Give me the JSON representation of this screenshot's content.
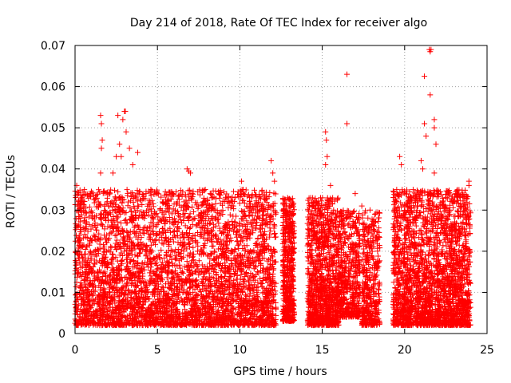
{
  "chart_data": {
    "type": "scatter",
    "title": "Day 214 of 2018, Rate Of TEC Index for receiver algo",
    "xlabel": "GPS time / hours",
    "ylabel": "ROTI / TECUs",
    "xlim": [
      0,
      25
    ],
    "ylim": [
      0,
      0.07
    ],
    "x_ticks": [
      0,
      5,
      10,
      15,
      20,
      25
    ],
    "x_tick_labels": [
      "0",
      "5",
      "10",
      "15",
      "20",
      "25"
    ],
    "y_ticks": [
      0,
      0.01,
      0.02,
      0.03,
      0.04,
      0.05,
      0.06,
      0.07
    ],
    "y_tick_labels": [
      "0",
      "0.01",
      "0.02",
      "0.03",
      "0.04",
      "0.05",
      "0.06",
      "0.07"
    ],
    "grid": true,
    "marker": "+",
    "series": [
      {
        "name": "ROTI",
        "color": "#ff0000",
        "points": [
          [
            0.1,
            0.036
          ],
          [
            0.2,
            0.031
          ],
          [
            0.3,
            0.028
          ],
          [
            1.55,
            0.053
          ],
          [
            1.6,
            0.051
          ],
          [
            1.65,
            0.047
          ],
          [
            1.6,
            0.045
          ],
          [
            1.55,
            0.039
          ],
          [
            2.5,
            0.043
          ],
          [
            2.7,
            0.046
          ],
          [
            2.9,
            0.052
          ],
          [
            3.0,
            0.054
          ],
          [
            3.05,
            0.054
          ],
          [
            3.1,
            0.049
          ],
          [
            2.6,
            0.053
          ],
          [
            3.3,
            0.045
          ],
          [
            3.5,
            0.041
          ],
          [
            3.8,
            0.044
          ],
          [
            2.3,
            0.039
          ],
          [
            2.8,
            0.043
          ],
          [
            4.6,
            0.035
          ],
          [
            5.0,
            0.034
          ],
          [
            5.3,
            0.032
          ],
          [
            5.6,
            0.031
          ],
          [
            6.8,
            0.04
          ],
          [
            6.9,
            0.0395
          ],
          [
            7.0,
            0.039
          ],
          [
            7.9,
            0.035
          ],
          [
            8.2,
            0.034
          ],
          [
            8.5,
            0.03
          ],
          [
            9.3,
            0.033
          ],
          [
            9.6,
            0.031
          ],
          [
            10.1,
            0.037
          ],
          [
            10.2,
            0.035
          ],
          [
            10.7,
            0.03
          ],
          [
            11.2,
            0.028
          ],
          [
            11.9,
            0.042
          ],
          [
            12.0,
            0.039
          ],
          [
            12.1,
            0.037
          ],
          [
            12.9,
            0.033
          ],
          [
            13.1,
            0.031
          ],
          [
            14.3,
            0.033
          ],
          [
            14.9,
            0.033
          ],
          [
            15.2,
            0.049
          ],
          [
            15.25,
            0.047
          ],
          [
            15.3,
            0.043
          ],
          [
            15.2,
            0.041
          ],
          [
            15.5,
            0.036
          ],
          [
            16.5,
            0.063
          ],
          [
            16.5,
            0.051
          ],
          [
            17.0,
            0.034
          ],
          [
            17.4,
            0.031
          ],
          [
            17.9,
            0.03
          ],
          [
            18.2,
            0.027
          ],
          [
            19.4,
            0.03
          ],
          [
            19.7,
            0.043
          ],
          [
            19.8,
            0.041
          ],
          [
            20.3,
            0.032
          ],
          [
            20.8,
            0.031
          ],
          [
            21.0,
            0.042
          ],
          [
            21.1,
            0.04
          ],
          [
            21.2,
            0.0625
          ],
          [
            21.2,
            0.051
          ],
          [
            21.3,
            0.048
          ],
          [
            21.5,
            0.069
          ],
          [
            21.55,
            0.0685
          ],
          [
            21.6,
            0.069
          ],
          [
            21.55,
            0.058
          ],
          [
            21.8,
            0.052
          ],
          [
            21.8,
            0.05
          ],
          [
            21.9,
            0.046
          ],
          [
            21.8,
            0.039
          ],
          [
            22.3,
            0.032
          ],
          [
            22.7,
            0.03
          ],
          [
            23.1,
            0.034
          ],
          [
            23.5,
            0.029
          ],
          [
            23.9,
            0.037
          ],
          [
            23.9,
            0.036
          ]
        ]
      }
    ],
    "dense_regions": [
      {
        "x": [
          0,
          12.2
        ],
        "y": [
          0.002,
          0.035
        ],
        "weight": 1.0
      },
      {
        "x": [
          12.6,
          13.3
        ],
        "y": [
          0.003,
          0.033
        ],
        "weight": 0.12
      },
      {
        "x": [
          14.1,
          16.0
        ],
        "y": [
          0.002,
          0.033
        ],
        "weight": 0.25
      },
      {
        "x": [
          16.0,
          17.3
        ],
        "y": [
          0.004,
          0.03
        ],
        "weight": 0.12
      },
      {
        "x": [
          17.4,
          18.5
        ],
        "y": [
          0.002,
          0.03
        ],
        "weight": 0.1
      },
      {
        "x": [
          19.3,
          24.0
        ],
        "y": [
          0.002,
          0.035
        ],
        "weight": 0.55
      }
    ]
  }
}
